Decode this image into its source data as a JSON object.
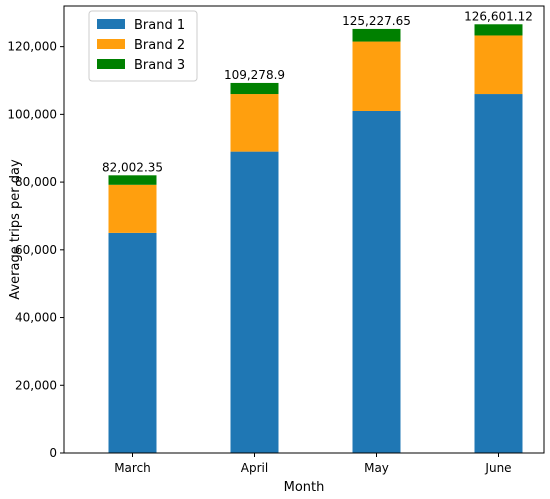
{
  "chart_data": {
    "type": "bar",
    "stacked": true,
    "categories": [
      "March",
      "April",
      "May",
      "June"
    ],
    "series": [
      {
        "name": "Brand 1",
        "color": "#1f77b4",
        "values": [
          65000,
          89000,
          101000,
          106000
        ]
      },
      {
        "name": "Brand 2",
        "color": "#ff9f0e",
        "values": [
          14200,
          17000,
          20500,
          17300
        ]
      },
      {
        "name": "Brand 3",
        "color": "#008000",
        "values": [
          2802.35,
          3278.9,
          3727.65,
          3301.12
        ]
      }
    ],
    "totals": [
      "82,002.35",
      "109,278.9",
      "125,227.65",
      "126,601.12"
    ],
    "xlabel": "Month",
    "ylabel": "Average trips per day",
    "ylim": [
      0,
      132000
    ],
    "yticks": [
      0,
      20000,
      40000,
      60000,
      80000,
      100000,
      120000
    ],
    "ytick_labels": [
      "0",
      "20,000",
      "40,000",
      "60,000",
      "80,000",
      "100,000",
      "120,000"
    ],
    "grid": false,
    "legend_position": "top-left"
  }
}
